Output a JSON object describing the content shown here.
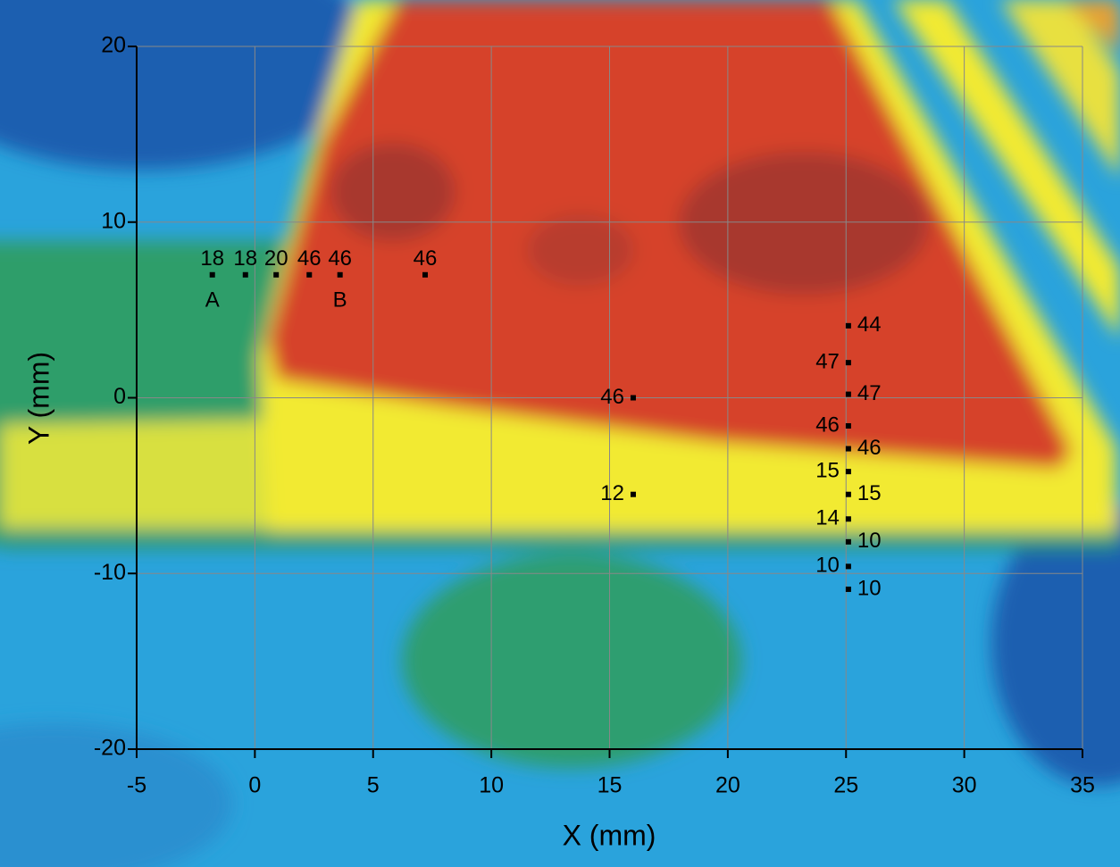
{
  "chart_data": {
    "type": "scatter",
    "xlabel": "X (mm)",
    "ylabel": "Y (mm)",
    "xlim": [
      -5,
      35
    ],
    "ylim": [
      -20,
      20
    ],
    "xticks": [
      -5,
      0,
      5,
      10,
      15,
      20,
      25,
      30,
      35
    ],
    "yticks": [
      -20,
      -10,
      0,
      10,
      20
    ],
    "grid": true,
    "series": [
      {
        "color": "#000000",
        "x": [
          -1.8,
          -0.4,
          0.9,
          2.3,
          3.6,
          7.2,
          16,
          16,
          25.1,
          25.1,
          25.1,
          25.1,
          25.1,
          25.1,
          25.1,
          25.1,
          25.1,
          25.1,
          25.1
        ],
        "values": [
          7,
          7,
          7,
          7,
          7,
          7,
          0,
          -5.5,
          4.1,
          2,
          0.2,
          -1.6,
          -2.9,
          -4.2,
          -5.5,
          -6.9,
          -8.2,
          -9.6,
          -10.9
        ],
        "point_labels": [
          "18",
          "18",
          "20",
          "46",
          "46",
          "46",
          "46",
          "12",
          "44",
          "47",
          "47",
          "46",
          "46",
          "15",
          "15",
          "14",
          "10",
          "10",
          "10"
        ]
      }
    ],
    "annotations": [
      {
        "text": "A",
        "x": -1.8,
        "y": 5.5
      },
      {
        "text": "B",
        "x": 3.6,
        "y": 5.5
      }
    ]
  }
}
